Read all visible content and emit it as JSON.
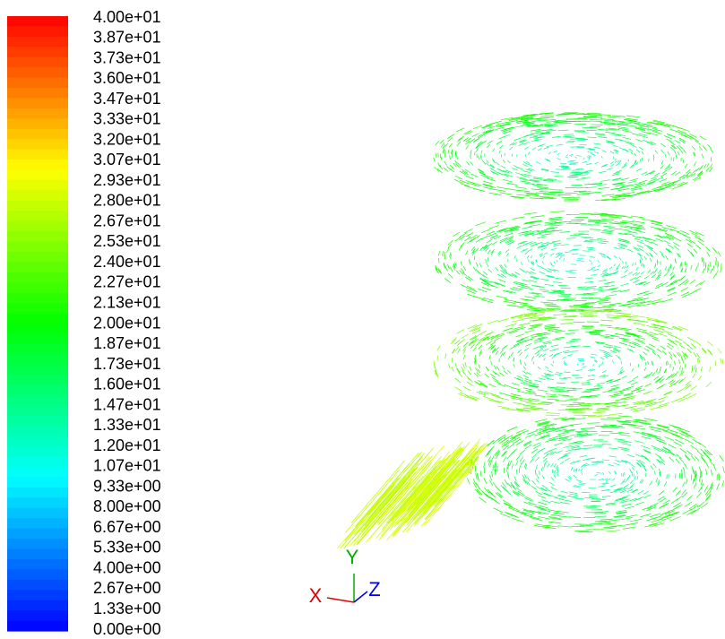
{
  "colorbar": {
    "labels": [
      "4.00e+01",
      "3.87e+01",
      "3.73e+01",
      "3.60e+01",
      "3.47e+01",
      "3.33e+01",
      "3.20e+01",
      "3.07e+01",
      "2.93e+01",
      "2.80e+01",
      "2.67e+01",
      "2.53e+01",
      "2.40e+01",
      "2.27e+01",
      "2.13e+01",
      "2.00e+01",
      "1.87e+01",
      "1.73e+01",
      "1.60e+01",
      "1.47e+01",
      "1.33e+01",
      "1.20e+01",
      "1.07e+01",
      "9.33e+00",
      "8.00e+00",
      "6.67e+00",
      "5.33e+00",
      "4.00e+00",
      "2.67e+00",
      "1.33e+00",
      "0.00e+00"
    ]
  },
  "axes_triad": {
    "x": "X",
    "y": "Y",
    "z": "Z"
  }
}
